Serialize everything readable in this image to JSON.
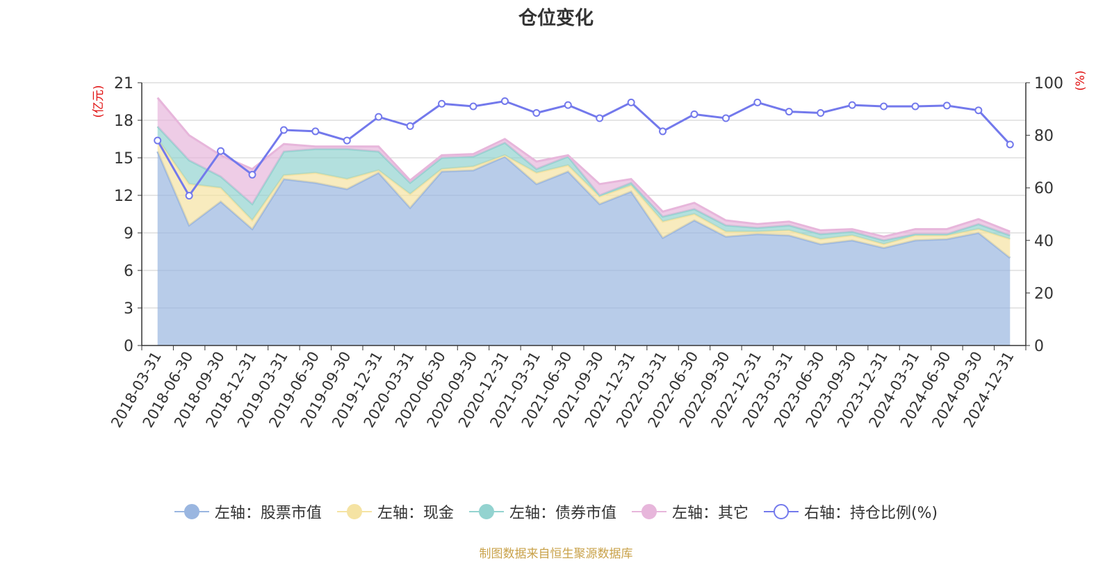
{
  "chart_data": {
    "type": "area",
    "title": "仓位变化",
    "left_unit": "(亿元)",
    "right_unit": "(%)",
    "left_ylim": [
      0,
      21
    ],
    "left_ticks": [
      "0",
      "3",
      "6",
      "9",
      "12",
      "15",
      "18",
      "21"
    ],
    "right_ylim": [
      0,
      100
    ],
    "right_ticks": [
      "0",
      "20",
      "40",
      "60",
      "80",
      "100"
    ],
    "grid": true,
    "legend_position": "bottom",
    "categories": [
      "2018-03-31",
      "2018-06-30",
      "2018-09-30",
      "2018-12-31",
      "2019-03-31",
      "2019-06-30",
      "2019-09-30",
      "2019-12-31",
      "2020-03-31",
      "2020-06-30",
      "2020-09-30",
      "2020-12-31",
      "2021-03-31",
      "2021-06-30",
      "2021-09-30",
      "2021-12-31",
      "2022-03-31",
      "2022-06-30",
      "2022-09-30",
      "2022-12-31",
      "2023-03-31",
      "2023-06-30",
      "2023-09-30",
      "2023-12-31",
      "2024-03-31",
      "2024-06-30",
      "2024-09-30",
      "2024-12-31"
    ],
    "stack_series": [
      {
        "name": "左轴：股票市值",
        "color": "#9ab6e0",
        "values": [
          15.5,
          9.6,
          11.5,
          9.3,
          13.3,
          13.0,
          12.5,
          13.8,
          11.0,
          13.9,
          14.0,
          15.1,
          12.9,
          13.9,
          11.3,
          12.3,
          8.6,
          10.0,
          8.7,
          8.9,
          8.8,
          8.1,
          8.4,
          7.8,
          8.4,
          8.5,
          9.0,
          7.0
        ]
      },
      {
        "name": "左轴：现金",
        "color": "#f5e3a3",
        "values": [
          1.0,
          3.3,
          1.1,
          0.7,
          0.3,
          0.8,
          0.8,
          0.2,
          1.1,
          0.2,
          0.3,
          0.1,
          0.9,
          0.5,
          0.6,
          0.5,
          1.3,
          0.5,
          0.4,
          0.2,
          0.4,
          0.4,
          0.4,
          0.3,
          0.4,
          0.3,
          0.3,
          1.5
        ]
      },
      {
        "name": "左轴：债券市值",
        "color": "#93d3d0",
        "values": [
          1.0,
          1.9,
          0.9,
          1.3,
          1.9,
          1.9,
          2.4,
          1.5,
          0.9,
          0.9,
          0.8,
          1.0,
          0.3,
          0.7,
          0.1,
          0.2,
          0.4,
          0.4,
          0.5,
          0.3,
          0.4,
          0.4,
          0.3,
          0.3,
          0.1,
          0.1,
          0.4,
          0.3
        ]
      },
      {
        "name": "左轴：其它",
        "color": "#e7b6db",
        "values": [
          2.3,
          2.0,
          1.7,
          2.8,
          0.6,
          0.2,
          0.2,
          0.4,
          0.2,
          0.2,
          0.2,
          0.3,
          0.6,
          0.1,
          0.9,
          0.3,
          0.4,
          0.5,
          0.4,
          0.3,
          0.3,
          0.3,
          0.2,
          0.3,
          0.4,
          0.4,
          0.4,
          0.3
        ]
      }
    ],
    "line_series": {
      "name": "右轴：持仓比例(%)",
      "color": "#7379ec",
      "values": [
        78,
        57,
        74,
        65,
        82,
        81.5,
        78,
        87,
        83.5,
        92,
        91,
        93,
        88.5,
        91.5,
        86.5,
        92.5,
        81.5,
        88,
        86.5,
        92.5,
        89,
        88.5,
        91.5,
        91,
        91,
        91.3,
        89.5,
        76.5
      ]
    },
    "source": "制图数据来自恒生聚源数据库"
  }
}
